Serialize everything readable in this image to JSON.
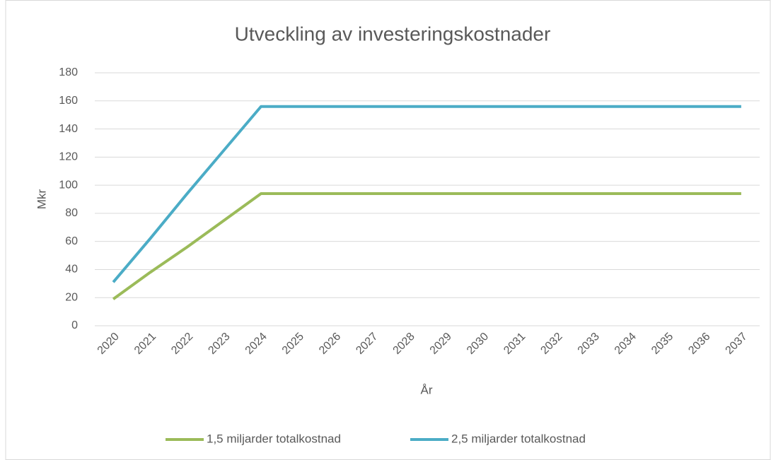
{
  "chart_data": {
    "type": "line",
    "title": "Utveckling av investeringskostnader",
    "x_label": "År",
    "y_label": "Mkr",
    "categories": [
      "2020",
      "2021",
      "2022",
      "2023",
      "2024",
      "2025",
      "2026",
      "2027",
      "2028",
      "2029",
      "2030",
      "2031",
      "2032",
      "2033",
      "2034",
      "2035",
      "2036",
      "2037"
    ],
    "series": [
      {
        "name": "1,5 miljarder totalkostnad",
        "color": "#9bbb59",
        "values": [
          19,
          38,
          56,
          75,
          94,
          94,
          94,
          94,
          94,
          94,
          94,
          94,
          94,
          94,
          94,
          94,
          94,
          94
        ]
      },
      {
        "name": "2,5 miljarder totalkostnad",
        "color": "#4bacc6",
        "values": [
          31,
          62,
          94,
          125,
          156,
          156,
          156,
          156,
          156,
          156,
          156,
          156,
          156,
          156,
          156,
          156,
          156,
          156
        ]
      }
    ],
    "ylim": [
      0,
      180
    ],
    "yticks": [
      0,
      20,
      40,
      60,
      80,
      100,
      120,
      140,
      160,
      180
    ],
    "grid": true,
    "legend": "bottom"
  }
}
